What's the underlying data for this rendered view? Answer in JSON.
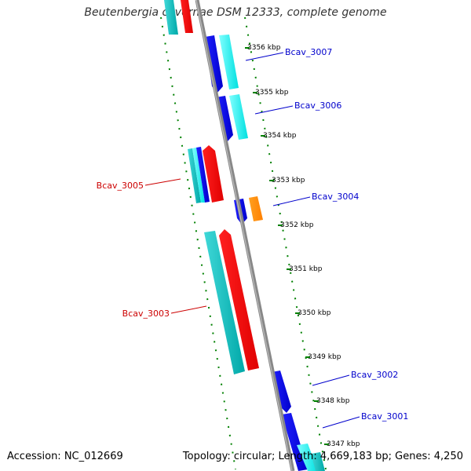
{
  "title": "Beutenbergia cavernae DSM 12333, complete genome",
  "footer": {
    "accession": "Accession: NC_012669",
    "stats": "Topology: circular; Length: 4,669,183 bp; Genes: 4,250"
  },
  "colors": {
    "backbone": "#808080",
    "forward_cds": "#ff0000",
    "reverse_cds": "#0000ff",
    "forward_feature": "#00b0b0",
    "reverse_feature": "#00ffff",
    "misc_feature": "#ff8c00",
    "tick": "#008000",
    "label_forward": "#cc0000",
    "label_reverse": "#0000cc"
  },
  "ticks": [
    {
      "label": "3356 kbp"
    },
    {
      "label": "3355 kbp"
    },
    {
      "label": "3354 kbp"
    },
    {
      "label": "3353 kbp"
    },
    {
      "label": "3352 kbp"
    },
    {
      "label": "3351 kbp"
    },
    {
      "label": "3350 kbp"
    },
    {
      "label": "3349 kbp"
    },
    {
      "label": "3348 kbp"
    },
    {
      "label": "3347 kbp"
    }
  ],
  "gene_labels": [
    {
      "name": "Bcav_3007"
    },
    {
      "name": "Bcav_3006"
    },
    {
      "name": "Bcav_3005"
    },
    {
      "name": "Bcav_3004"
    },
    {
      "name": "Bcav_3003"
    },
    {
      "name": "Bcav_3002"
    },
    {
      "name": "Bcav_3001"
    }
  ]
}
